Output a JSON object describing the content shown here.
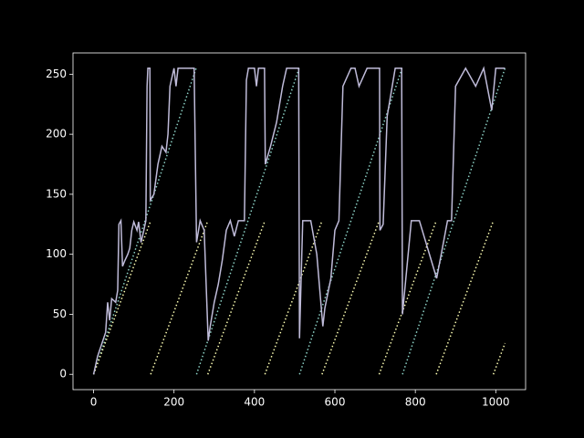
{
  "chart_data": {
    "type": "line",
    "xlim": [
      -51.15,
      1074.15
    ],
    "ylim": [
      -12.75,
      267.75
    ],
    "xticks": [
      0,
      200,
      400,
      600,
      800,
      1000
    ],
    "yticks": [
      0,
      50,
      100,
      150,
      200,
      250
    ],
    "series": [
      {
        "color": "#8dd3c7",
        "style": "dotted",
        "x": [
          0,
          255,
          255.5,
          256,
          511,
          511.5,
          512,
          767,
          767.5,
          768,
          1023
        ],
        "values": [
          0,
          255,
          null,
          0,
          255,
          null,
          0,
          255,
          null,
          0,
          255
        ]
      },
      {
        "color": "#feffb3",
        "style": "dotted",
        "x": [
          0,
          141,
          141.5,
          142,
          283,
          283.5,
          284,
          425,
          425.5,
          426,
          567,
          567.5,
          568,
          709,
          709.5,
          710,
          851,
          851.5,
          852,
          993,
          993.5,
          994,
          1023
        ],
        "values": [
          0,
          127,
          null,
          0,
          127,
          null,
          0,
          127,
          null,
          0,
          127,
          null,
          0,
          127,
          null,
          0,
          127,
          null,
          0,
          127,
          null,
          0,
          26
        ]
      },
      {
        "color": "#bfbbd9",
        "style": "solid",
        "x": [
          0,
          10,
          20,
          30,
          35,
          40,
          45,
          55,
          60,
          63,
          68,
          72,
          78,
          85,
          90,
          95,
          100,
          108,
          112,
          118,
          125,
          130,
          133,
          135,
          140,
          141,
          150,
          160,
          170,
          180,
          185,
          190,
          200,
          205,
          210,
          250,
          256,
          265,
          275,
          285,
          290,
          300,
          310,
          320,
          330,
          340,
          350,
          360,
          375,
          380,
          385,
          400,
          405,
          410,
          425,
          427,
          440,
          455,
          470,
          480,
          510,
          512,
          520,
          540,
          555,
          570,
          575,
          590,
          600,
          610,
          620,
          640,
          650,
          660,
          680,
          711,
          712,
          720,
          730,
          750,
          766,
          768,
          790,
          810,
          853,
          870,
          880,
          890,
          900,
          925,
          950,
          970,
          990,
          1000,
          1023
        ],
        "values": [
          0,
          15,
          25,
          35,
          60,
          45,
          63,
          60,
          70,
          125,
          128,
          90,
          95,
          100,
          105,
          120,
          127,
          120,
          127,
          110,
          120,
          128,
          240,
          255,
          255,
          145,
          150,
          175,
          190,
          185,
          200,
          240,
          255,
          240,
          255,
          255,
          110,
          128,
          120,
          28,
          40,
          60,
          75,
          95,
          120,
          128,
          115,
          128,
          128,
          245,
          255,
          255,
          240,
          255,
          255,
          175,
          190,
          210,
          240,
          255,
          255,
          30,
          128,
          128,
          100,
          40,
          55,
          80,
          120,
          128,
          240,
          255,
          255,
          240,
          255,
          255,
          120,
          125,
          215,
          255,
          255,
          50,
          128,
          128,
          80,
          110,
          128,
          128,
          240,
          255,
          240,
          255,
          220,
          255,
          255
        ]
      }
    ]
  }
}
